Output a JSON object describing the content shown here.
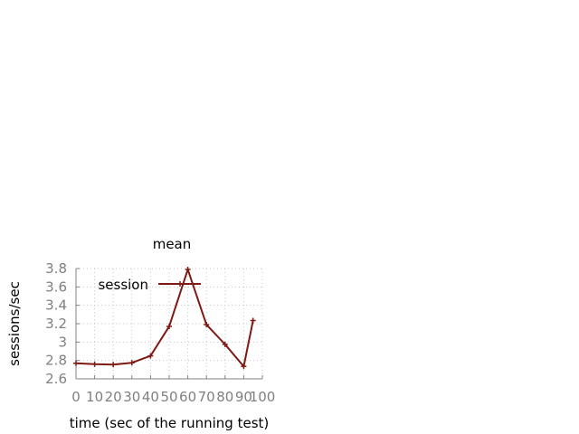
{
  "chart_data": {
    "type": "line",
    "title": "mean",
    "xlabel": "time (sec of the running test)",
    "ylabel": "sessions/sec",
    "xlim": [
      0,
      100
    ],
    "ylim": [
      2.6,
      3.8
    ],
    "xticks": [
      0,
      10,
      20,
      30,
      40,
      50,
      60,
      70,
      80,
      90,
      100
    ],
    "xtick_labels": [
      "0",
      "10",
      "20",
      "30",
      "40",
      "50",
      "60",
      "70",
      "80",
      "90",
      "100"
    ],
    "yticks": [
      2.6,
      2.8,
      3.0,
      3.2,
      3.4,
      3.6,
      3.8
    ],
    "ytick_labels": [
      "2.6",
      "2.8",
      "3",
      "3.2",
      "3.4",
      "3.6",
      "3.8"
    ],
    "grid": true,
    "legend_position": "top-left",
    "series": [
      {
        "name": "session",
        "color": "#7f1a13",
        "marker": "plus",
        "x": [
          0,
          10,
          20,
          30,
          40,
          50,
          60,
          70,
          80,
          90,
          95
        ],
        "y": [
          2.77,
          2.76,
          2.755,
          2.775,
          2.85,
          3.17,
          3.79,
          3.19,
          2.975,
          2.735,
          3.235
        ]
      }
    ]
  }
}
